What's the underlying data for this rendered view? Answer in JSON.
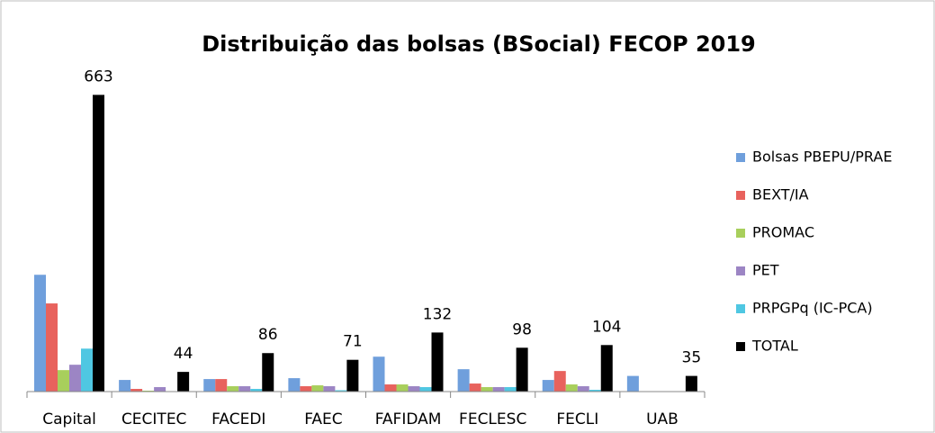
{
  "chart_data": {
    "type": "bar",
    "title": "Distribuição das bolsas (BSocial) FECOP 2019",
    "categories": [
      "Capital",
      "CECITEC",
      "FACEDI",
      "FAEC",
      "FAFIDAM",
      "FECLESC",
      "FECLI",
      "UAB"
    ],
    "series": [
      {
        "name": "Bolsas PBEPU/PRAE",
        "color": "#6f9fdc",
        "values": [
          261,
          26,
          28,
          30,
          78,
          50,
          26,
          35
        ]
      },
      {
        "name": "BEXT/IA",
        "color": "#e8625d",
        "values": [
          197,
          6,
          28,
          12,
          16,
          18,
          46,
          0
        ]
      },
      {
        "name": "PROMAC",
        "color": "#a8cf5c",
        "values": [
          48,
          2,
          12,
          14,
          16,
          10,
          16,
          0
        ]
      },
      {
        "name": "PET",
        "color": "#9c85c4",
        "values": [
          60,
          10,
          12,
          12,
          12,
          10,
          12,
          0
        ]
      },
      {
        "name": "PRPGPq (IC-PCA)",
        "color": "#4fc7e2",
        "values": [
          96,
          0,
          6,
          3,
          10,
          10,
          4,
          0
        ]
      },
      {
        "name": "TOTAL",
        "color": "#000000",
        "values": [
          663,
          44,
          86,
          71,
          132,
          98,
          104,
          35
        ],
        "labels": true
      }
    ],
    "ylim": [
      0,
      700
    ],
    "legend": "right"
  }
}
